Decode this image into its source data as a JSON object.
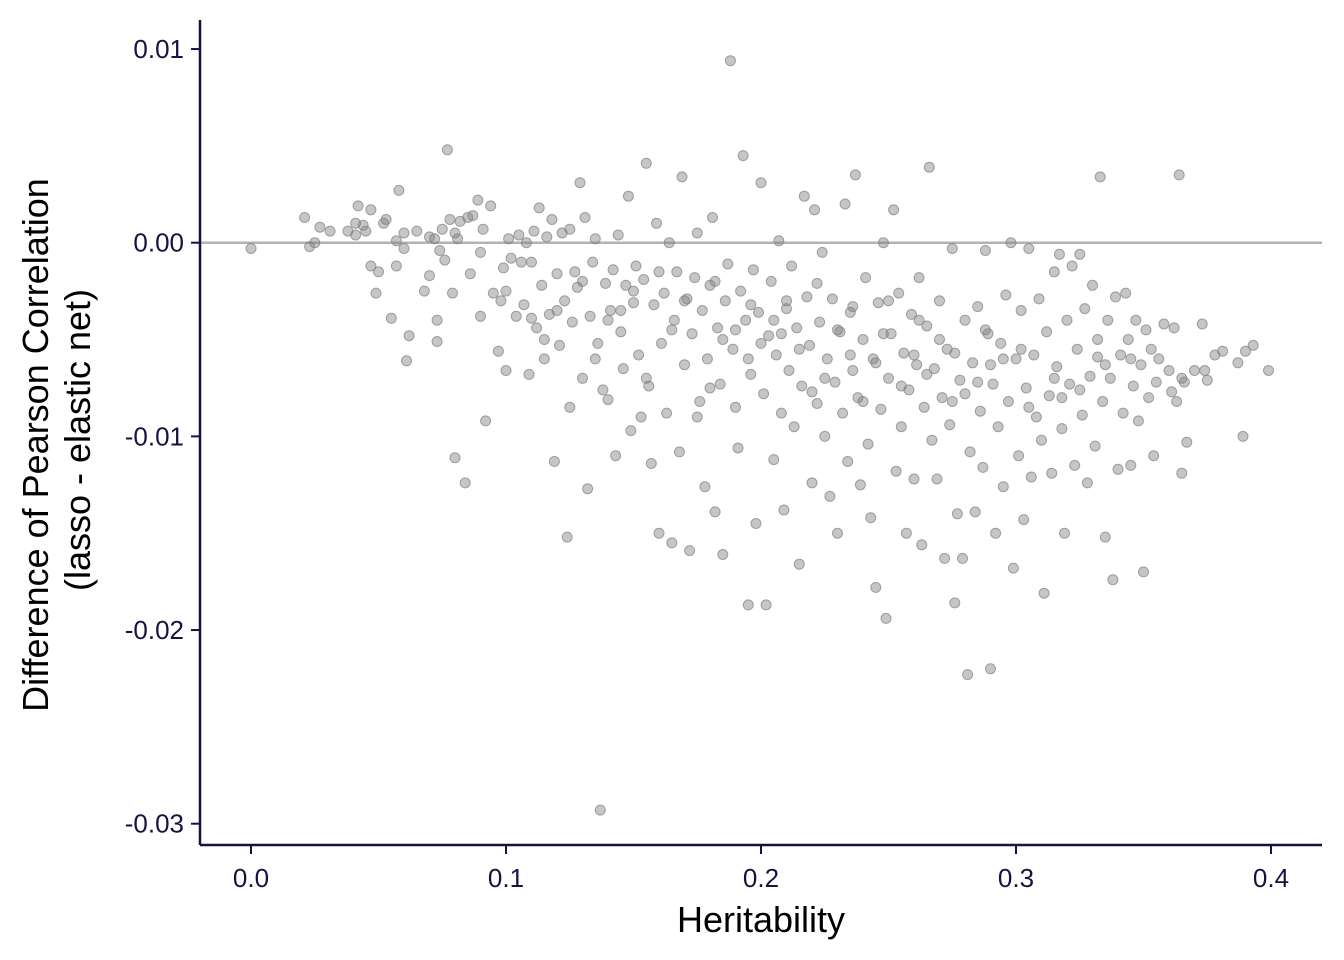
{
  "chart_data": {
    "type": "scatter",
    "xlabel": "Heritability",
    "ylabel_lines": [
      "Difference of Pearson Correlation",
      "(lasso - elastic net)"
    ],
    "xlim": [
      -0.02,
      0.42
    ],
    "ylim": [
      -0.0311,
      0.0115
    ],
    "xticks": [
      0.0,
      0.1,
      0.2,
      0.3,
      0.4
    ],
    "xtick_labels": [
      "0.0",
      "0.1",
      "0.2",
      "0.3",
      "0.4"
    ],
    "yticks": [
      0.01,
      0.0,
      -0.01,
      -0.02,
      -0.03
    ],
    "ytick_labels": [
      "0.01",
      "0.00",
      "-0.01",
      "-0.02",
      "-0.03"
    ],
    "reference_line": {
      "y": 0.0,
      "color": "#b3b3b3"
    },
    "point_color": "#808080",
    "point_opacity": 0.45,
    "axis_color": "#1b1140",
    "grid": false,
    "legend": "none",
    "points": [
      [
        0.0,
        -0.0003
      ],
      [
        0.021,
        0.0013
      ],
      [
        0.023,
        -0.0002
      ],
      [
        0.025,
        0.0
      ],
      [
        0.027,
        0.0008
      ],
      [
        0.031,
        0.0006
      ],
      [
        0.038,
        0.0006
      ],
      [
        0.041,
        0.001
      ],
      [
        0.041,
        0.0004
      ],
      [
        0.042,
        0.0019
      ],
      [
        0.044,
        0.0009
      ],
      [
        0.045,
        0.0006
      ],
      [
        0.047,
        -0.0012
      ],
      [
        0.047,
        0.0017
      ],
      [
        0.049,
        -0.0026
      ],
      [
        0.05,
        -0.0015
      ],
      [
        0.052,
        0.001
      ],
      [
        0.053,
        0.0012
      ],
      [
        0.055,
        -0.0039
      ],
      [
        0.057,
        0.0001
      ],
      [
        0.057,
        -0.0012
      ],
      [
        0.058,
        0.0027
      ],
      [
        0.06,
        0.0005
      ],
      [
        0.061,
        -0.0061
      ],
      [
        0.062,
        -0.0048
      ],
      [
        0.065,
        0.0006
      ],
      [
        0.068,
        -0.0025
      ],
      [
        0.07,
        -0.0017
      ],
      [
        0.072,
        0.0002
      ],
      [
        0.073,
        -0.004
      ],
      [
        0.073,
        -0.0051
      ],
      [
        0.074,
        -0.0004
      ],
      [
        0.075,
        0.0007
      ],
      [
        0.076,
        -0.0009
      ],
      [
        0.077,
        0.0048
      ],
      [
        0.078,
        0.0012
      ],
      [
        0.079,
        -0.0026
      ],
      [
        0.08,
        -0.0111
      ],
      [
        0.081,
        0.0002
      ],
      [
        0.082,
        0.0011
      ],
      [
        0.084,
        -0.0124
      ],
      [
        0.085,
        0.0013
      ],
      [
        0.086,
        -0.0016
      ],
      [
        0.087,
        0.0014
      ],
      [
        0.089,
        0.0022
      ],
      [
        0.09,
        -0.0038
      ],
      [
        0.091,
        0.0007
      ],
      [
        0.092,
        -0.0092
      ],
      [
        0.094,
        0.0019
      ],
      [
        0.095,
        -0.0026
      ],
      [
        0.097,
        -0.0056
      ],
      [
        0.098,
        -0.003
      ],
      [
        0.099,
        -0.0013
      ],
      [
        0.1,
        -0.0066
      ],
      [
        0.101,
        0.0002
      ],
      [
        0.102,
        -0.0008
      ],
      [
        0.104,
        -0.0038
      ],
      [
        0.105,
        0.0004
      ],
      [
        0.106,
        -0.001
      ],
      [
        0.107,
        -0.0032
      ],
      [
        0.108,
        0.0
      ],
      [
        0.109,
        -0.0068
      ],
      [
        0.11,
        -0.0039
      ],
      [
        0.111,
        0.0006
      ],
      [
        0.112,
        -0.0044
      ],
      [
        0.113,
        0.0018
      ],
      [
        0.114,
        -0.0022
      ],
      [
        0.115,
        -0.006
      ],
      [
        0.116,
        0.0003
      ],
      [
        0.117,
        -0.0037
      ],
      [
        0.118,
        0.0012
      ],
      [
        0.119,
        -0.0113
      ],
      [
        0.12,
        -0.0016
      ],
      [
        0.121,
        -0.0053
      ],
      [
        0.122,
        0.0005
      ],
      [
        0.123,
        -0.003
      ],
      [
        0.124,
        -0.0152
      ],
      [
        0.125,
        0.0007
      ],
      [
        0.126,
        -0.0041
      ],
      [
        0.127,
        -0.0015
      ],
      [
        0.128,
        -0.0023
      ],
      [
        0.129,
        0.0031
      ],
      [
        0.13,
        -0.007
      ],
      [
        0.131,
        0.0013
      ],
      [
        0.132,
        -0.0127
      ],
      [
        0.133,
        -0.0038
      ],
      [
        0.134,
        -0.001
      ],
      [
        0.135,
        0.0002
      ],
      [
        0.136,
        -0.0052
      ],
      [
        0.137,
        -0.0293
      ],
      [
        0.138,
        -0.0076
      ],
      [
        0.139,
        -0.0021
      ],
      [
        0.14,
        -0.0081
      ],
      [
        0.141,
        -0.0035
      ],
      [
        0.142,
        -0.0014
      ],
      [
        0.143,
        -0.011
      ],
      [
        0.144,
        0.0004
      ],
      [
        0.145,
        -0.0046
      ],
      [
        0.146,
        -0.0065
      ],
      [
        0.147,
        -0.0022
      ],
      [
        0.148,
        0.0024
      ],
      [
        0.149,
        -0.0097
      ],
      [
        0.15,
        -0.0031
      ],
      [
        0.151,
        -0.0012
      ],
      [
        0.152,
        -0.0058
      ],
      [
        0.153,
        -0.009
      ],
      [
        0.154,
        -0.0019
      ],
      [
        0.155,
        0.0041
      ],
      [
        0.156,
        -0.0074
      ],
      [
        0.157,
        -0.0114
      ],
      [
        0.158,
        -0.0032
      ],
      [
        0.159,
        0.001
      ],
      [
        0.16,
        -0.015
      ],
      [
        0.161,
        -0.0052
      ],
      [
        0.162,
        -0.0026
      ],
      [
        0.163,
        -0.0088
      ],
      [
        0.164,
        0.0
      ],
      [
        0.165,
        -0.0155
      ],
      [
        0.166,
        -0.004
      ],
      [
        0.167,
        -0.0015
      ],
      [
        0.168,
        -0.0108
      ],
      [
        0.169,
        0.0034
      ],
      [
        0.17,
        -0.0063
      ],
      [
        0.171,
        -0.0029
      ],
      [
        0.172,
        -0.0159
      ],
      [
        0.173,
        -0.0047
      ],
      [
        0.174,
        -0.0018
      ],
      [
        0.175,
        0.0005
      ],
      [
        0.176,
        -0.0082
      ],
      [
        0.177,
        -0.0035
      ],
      [
        0.178,
        -0.0126
      ],
      [
        0.179,
        -0.006
      ],
      [
        0.18,
        -0.0022
      ],
      [
        0.181,
        0.0013
      ],
      [
        0.182,
        -0.0139
      ],
      [
        0.183,
        -0.0044
      ],
      [
        0.184,
        -0.0073
      ],
      [
        0.185,
        -0.0161
      ],
      [
        0.186,
        -0.003
      ],
      [
        0.187,
        -0.0011
      ],
      [
        0.188,
        0.0094
      ],
      [
        0.189,
        -0.0055
      ],
      [
        0.19,
        -0.0085
      ],
      [
        0.191,
        -0.0106
      ],
      [
        0.192,
        -0.0025
      ],
      [
        0.193,
        0.0045
      ],
      [
        0.194,
        -0.004
      ],
      [
        0.195,
        -0.0187
      ],
      [
        0.196,
        -0.0068
      ],
      [
        0.197,
        -0.0014
      ],
      [
        0.198,
        -0.0145
      ],
      [
        0.199,
        -0.0036
      ],
      [
        0.2,
        0.0031
      ],
      [
        0.201,
        -0.0078
      ],
      [
        0.202,
        -0.0187
      ],
      [
        0.203,
        -0.0048
      ],
      [
        0.204,
        -0.002
      ],
      [
        0.205,
        -0.0112
      ],
      [
        0.206,
        -0.0058
      ],
      [
        0.207,
        0.0001
      ],
      [
        0.208,
        -0.0088
      ],
      [
        0.209,
        -0.0138
      ],
      [
        0.21,
        -0.0034
      ],
      [
        0.211,
        -0.0066
      ],
      [
        0.212,
        -0.0012
      ],
      [
        0.213,
        -0.0095
      ],
      [
        0.214,
        -0.0044
      ],
      [
        0.215,
        -0.0166
      ],
      [
        0.216,
        -0.0074
      ],
      [
        0.217,
        0.0024
      ],
      [
        0.218,
        -0.0028
      ],
      [
        0.219,
        -0.0053
      ],
      [
        0.22,
        -0.0124
      ],
      [
        0.221,
        0.0017
      ],
      [
        0.222,
        -0.0083
      ],
      [
        0.223,
        -0.0041
      ],
      [
        0.224,
        -0.0005
      ],
      [
        0.225,
        -0.01
      ],
      [
        0.226,
        -0.006
      ],
      [
        0.227,
        -0.0131
      ],
      [
        0.228,
        -0.0029
      ],
      [
        0.229,
        -0.0072
      ],
      [
        0.23,
        -0.015
      ],
      [
        0.231,
        -0.0046
      ],
      [
        0.232,
        -0.0088
      ],
      [
        0.233,
        0.002
      ],
      [
        0.234,
        -0.0113
      ],
      [
        0.235,
        -0.0036
      ],
      [
        0.236,
        -0.0066
      ],
      [
        0.237,
        0.0035
      ],
      [
        0.238,
        -0.008
      ],
      [
        0.239,
        -0.0125
      ],
      [
        0.24,
        -0.005
      ],
      [
        0.241,
        -0.0018
      ],
      [
        0.242,
        -0.0104
      ],
      [
        0.243,
        -0.0142
      ],
      [
        0.244,
        -0.006
      ],
      [
        0.245,
        -0.0178
      ],
      [
        0.246,
        -0.0031
      ],
      [
        0.247,
        -0.0086
      ],
      [
        0.248,
        0.0
      ],
      [
        0.249,
        -0.0194
      ],
      [
        0.25,
        -0.007
      ],
      [
        0.251,
        -0.0047
      ],
      [
        0.252,
        0.0017
      ],
      [
        0.253,
        -0.0118
      ],
      [
        0.254,
        -0.0026
      ],
      [
        0.255,
        -0.0095
      ],
      [
        0.256,
        -0.0057
      ],
      [
        0.257,
        -0.015
      ],
      [
        0.258,
        -0.0076
      ],
      [
        0.259,
        -0.0037
      ],
      [
        0.26,
        -0.0122
      ],
      [
        0.261,
        -0.0063
      ],
      [
        0.262,
        -0.0018
      ],
      [
        0.263,
        -0.0156
      ],
      [
        0.264,
        -0.0085
      ],
      [
        0.265,
        -0.0043
      ],
      [
        0.266,
        0.0039
      ],
      [
        0.267,
        -0.0102
      ],
      [
        0.268,
        -0.0065
      ],
      [
        0.269,
        -0.0122
      ],
      [
        0.27,
        -0.003
      ],
      [
        0.271,
        -0.008
      ],
      [
        0.272,
        -0.0163
      ],
      [
        0.273,
        -0.0055
      ],
      [
        0.274,
        -0.0094
      ],
      [
        0.275,
        -0.0003
      ],
      [
        0.276,
        -0.0186
      ],
      [
        0.277,
        -0.014
      ],
      [
        0.278,
        -0.0071
      ],
      [
        0.279,
        -0.0163
      ],
      [
        0.28,
        -0.004
      ],
      [
        0.281,
        -0.0223
      ],
      [
        0.282,
        -0.0108
      ],
      [
        0.283,
        -0.0062
      ],
      [
        0.284,
        -0.0139
      ],
      [
        0.285,
        -0.0033
      ],
      [
        0.286,
        -0.0087
      ],
      [
        0.287,
        -0.0116
      ],
      [
        0.288,
        -0.0004
      ],
      [
        0.289,
        -0.0047
      ],
      [
        0.29,
        -0.022
      ],
      [
        0.291,
        -0.0073
      ],
      [
        0.292,
        -0.015
      ],
      [
        0.293,
        -0.0095
      ],
      [
        0.294,
        -0.0052
      ],
      [
        0.295,
        -0.0126
      ],
      [
        0.296,
        -0.0027
      ],
      [
        0.297,
        -0.0082
      ],
      [
        0.298,
        0.0
      ],
      [
        0.299,
        -0.0168
      ],
      [
        0.3,
        -0.006
      ],
      [
        0.301,
        -0.011
      ],
      [
        0.302,
        -0.0035
      ],
      [
        0.303,
        -0.0143
      ],
      [
        0.304,
        -0.0075
      ],
      [
        0.305,
        -0.0003
      ],
      [
        0.306,
        -0.0121
      ],
      [
        0.307,
        -0.0058
      ],
      [
        0.308,
        -0.009
      ],
      [
        0.309,
        -0.0029
      ],
      [
        0.31,
        -0.0102
      ],
      [
        0.311,
        -0.0181
      ],
      [
        0.312,
        -0.0046
      ],
      [
        0.313,
        -0.0079
      ],
      [
        0.314,
        -0.0119
      ],
      [
        0.315,
        -0.0015
      ],
      [
        0.316,
        -0.0064
      ],
      [
        0.317,
        -0.0006
      ],
      [
        0.318,
        -0.0096
      ],
      [
        0.319,
        -0.015
      ],
      [
        0.32,
        -0.004
      ],
      [
        0.321,
        -0.0073
      ],
      [
        0.322,
        -0.0012
      ],
      [
        0.323,
        -0.0115
      ],
      [
        0.324,
        -0.0055
      ],
      [
        0.325,
        -0.0006
      ],
      [
        0.326,
        -0.0089
      ],
      [
        0.327,
        -0.0034
      ],
      [
        0.328,
        -0.0124
      ],
      [
        0.329,
        -0.0069
      ],
      [
        0.33,
        -0.0022
      ],
      [
        0.331,
        -0.0105
      ],
      [
        0.332,
        -0.005
      ],
      [
        0.333,
        0.0034
      ],
      [
        0.334,
        -0.0082
      ],
      [
        0.335,
        -0.0152
      ],
      [
        0.336,
        -0.004
      ],
      [
        0.337,
        -0.007
      ],
      [
        0.338,
        -0.0174
      ],
      [
        0.339,
        -0.0028
      ],
      [
        0.34,
        -0.0117
      ],
      [
        0.341,
        -0.0058
      ],
      [
        0.342,
        -0.0088
      ],
      [
        0.343,
        -0.0026
      ],
      [
        0.344,
        -0.005
      ],
      [
        0.345,
        -0.0115
      ],
      [
        0.346,
        -0.0074
      ],
      [
        0.347,
        -0.004
      ],
      [
        0.348,
        -0.0092
      ],
      [
        0.349,
        -0.0063
      ],
      [
        0.35,
        -0.017
      ],
      [
        0.351,
        -0.0045
      ],
      [
        0.352,
        -0.008
      ],
      [
        0.353,
        -0.0055
      ],
      [
        0.354,
        -0.011
      ],
      [
        0.355,
        -0.0072
      ],
      [
        0.356,
        -0.006
      ],
      [
        0.358,
        -0.0042
      ],
      [
        0.36,
        -0.0066
      ],
      [
        0.361,
        -0.0077
      ],
      [
        0.362,
        -0.0044
      ],
      [
        0.363,
        -0.0082
      ],
      [
        0.364,
        0.0035
      ],
      [
        0.365,
        -0.0119
      ],
      [
        0.365,
        -0.007
      ],
      [
        0.366,
        -0.0072
      ],
      [
        0.367,
        -0.0103
      ],
      [
        0.37,
        -0.0066
      ],
      [
        0.373,
        -0.0042
      ],
      [
        0.374,
        -0.0066
      ],
      [
        0.375,
        -0.0071
      ],
      [
        0.378,
        -0.0058
      ],
      [
        0.381,
        -0.0056
      ],
      [
        0.387,
        -0.0062
      ],
      [
        0.389,
        -0.01
      ],
      [
        0.39,
        -0.0056
      ],
      [
        0.393,
        -0.0053
      ],
      [
        0.399,
        -0.0066
      ],
      [
        0.115,
        -0.005
      ],
      [
        0.125,
        -0.0085
      ],
      [
        0.135,
        -0.006
      ],
      [
        0.145,
        -0.0035
      ],
      [
        0.155,
        -0.007
      ],
      [
        0.165,
        -0.0045
      ],
      [
        0.175,
        -0.009
      ],
      [
        0.185,
        -0.005
      ],
      [
        0.195,
        -0.006
      ],
      [
        0.205,
        -0.004
      ],
      [
        0.215,
        -0.0055
      ],
      [
        0.225,
        -0.007
      ],
      [
        0.235,
        -0.0058
      ],
      [
        0.245,
        -0.0062
      ],
      [
        0.255,
        -0.0074
      ],
      [
        0.265,
        -0.0068
      ],
      [
        0.275,
        -0.0082
      ],
      [
        0.285,
        -0.0072
      ],
      [
        0.295,
        -0.006
      ],
      [
        0.305,
        -0.0085
      ],
      [
        0.315,
        -0.007
      ],
      [
        0.325,
        -0.0076
      ],
      [
        0.335,
        -0.0063
      ],
      [
        0.345,
        -0.006
      ],
      [
        0.18,
        -0.0075
      ],
      [
        0.19,
        -0.0045
      ],
      [
        0.2,
        -0.0052
      ],
      [
        0.21,
        -0.003
      ],
      [
        0.22,
        -0.0077
      ],
      [
        0.23,
        -0.0045
      ],
      [
        0.24,
        -0.0082
      ],
      [
        0.25,
        -0.003
      ],
      [
        0.26,
        -0.0058
      ],
      [
        0.27,
        -0.005
      ],
      [
        0.28,
        -0.0078
      ],
      [
        0.29,
        -0.0063
      ],
      [
        0.182,
        -0.002
      ],
      [
        0.196,
        -0.0032
      ],
      [
        0.208,
        -0.0047
      ],
      [
        0.222,
        -0.0021
      ],
      [
        0.236,
        -0.0033
      ],
      [
        0.248,
        -0.0047
      ],
      [
        0.262,
        -0.004
      ],
      [
        0.276,
        -0.0057
      ],
      [
        0.288,
        -0.0045
      ],
      [
        0.302,
        -0.0055
      ],
      [
        0.318,
        -0.008
      ],
      [
        0.332,
        -0.0059
      ],
      [
        0.17,
        -0.003
      ],
      [
        0.16,
        -0.0015
      ],
      [
        0.15,
        -0.0025
      ],
      [
        0.14,
        -0.004
      ],
      [
        0.13,
        -0.002
      ],
      [
        0.12,
        -0.0035
      ],
      [
        0.11,
        -0.001
      ],
      [
        0.1,
        -0.0025
      ],
      [
        0.09,
        -0.0005
      ],
      [
        0.08,
        0.0005
      ],
      [
        0.07,
        0.0003
      ],
      [
        0.06,
        -0.0003
      ]
    ]
  }
}
